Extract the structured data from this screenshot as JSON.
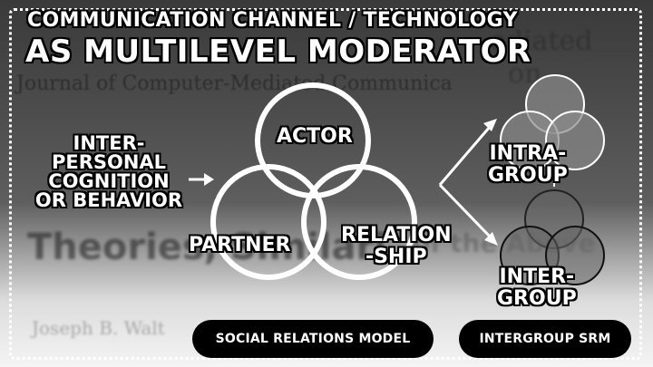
{
  "background": {
    "journal_text": "Journal of Computer-Mediated Communica",
    "corner_text_1": "ediated",
    "corner_text_2": "on",
    "theories_text": "Theories, Similari",
    "above_text": "of the Above",
    "author_text": "Joseph B. Walt"
  },
  "title": {
    "line1": "COMMUNICATION CHANNEL / TECHNOLOGY",
    "line2": "AS MULTILEVEL MODERATOR"
  },
  "input_label": {
    "lines": [
      "INTER-",
      "PERSONAL",
      "COGNITION",
      "OR BEHAVIOR"
    ]
  },
  "circles": {
    "actor": "ACTOR",
    "partner": "PARTNER",
    "relationship_lines": [
      "RELATION",
      "-SHIP"
    ]
  },
  "groups": {
    "intra_lines": [
      "INTRA-",
      "GROUP"
    ],
    "inter_lines": [
      "INTER-",
      "GROUP"
    ]
  },
  "buttons": {
    "social_relations_model": "SOCIAL RELATIONS MODEL",
    "intergroup_srm": "INTERGROUP SRM"
  },
  "colors": {
    "stroke": "#ffffff",
    "pill_background": "#000000",
    "group_fill": "#8a8a8a"
  }
}
